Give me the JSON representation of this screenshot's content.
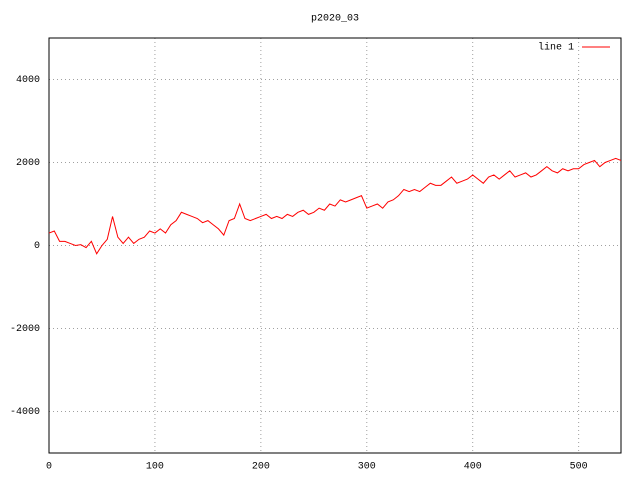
{
  "chart_data": {
    "type": "line",
    "title": "p2020_03",
    "x": [
      0,
      5,
      10,
      15,
      20,
      25,
      30,
      35,
      40,
      45,
      50,
      55,
      60,
      65,
      70,
      75,
      80,
      85,
      90,
      95,
      100,
      105,
      110,
      115,
      120,
      125,
      130,
      135,
      140,
      145,
      150,
      155,
      160,
      165,
      170,
      175,
      180,
      185,
      190,
      195,
      200,
      205,
      210,
      215,
      220,
      225,
      230,
      235,
      240,
      245,
      250,
      255,
      260,
      265,
      270,
      275,
      280,
      285,
      290,
      295,
      300,
      305,
      310,
      315,
      320,
      325,
      330,
      335,
      340,
      345,
      350,
      355,
      360,
      365,
      370,
      375,
      380,
      385,
      390,
      395,
      400,
      405,
      410,
      415,
      420,
      425,
      430,
      435,
      440,
      445,
      450,
      455,
      460,
      465,
      470,
      475,
      480,
      485,
      490,
      495,
      500,
      505,
      510,
      515,
      520,
      525,
      530,
      535,
      540
    ],
    "series": [
      {
        "name": "line 1",
        "color": "#ff0000",
        "values": [
          300,
          350,
          100,
          100,
          50,
          0,
          20,
          -50,
          100,
          -200,
          0,
          150,
          700,
          200,
          50,
          200,
          50,
          150,
          200,
          350,
          300,
          400,
          300,
          500,
          600,
          800,
          750,
          700,
          650,
          550,
          600,
          500,
          400,
          250,
          600,
          650,
          1000,
          650,
          600,
          650,
          700,
          750,
          650,
          700,
          650,
          750,
          700,
          800,
          850,
          750,
          800,
          900,
          850,
          1000,
          950,
          1100,
          1050,
          1100,
          1150,
          1200,
          900,
          950,
          1000,
          900,
          1050,
          1100,
          1200,
          1350,
          1300,
          1350,
          1300,
          1400,
          1500,
          1450,
          1450,
          1550,
          1650,
          1500,
          1550,
          1600,
          1700,
          1600,
          1500,
          1650,
          1700,
          1600,
          1700,
          1800,
          1650,
          1700,
          1750,
          1650,
          1700,
          1800,
          1900,
          1800,
          1750,
          1850,
          1800,
          1850,
          1850,
          1950,
          2000,
          2050,
          1900,
          2000,
          2050,
          2100,
          2050
        ]
      }
    ],
    "xlim": [
      0,
      540
    ],
    "xticks": [
      0,
      100,
      200,
      300,
      400,
      500
    ],
    "ylim": [
      -5000,
      5000
    ],
    "yticks": [
      -4000,
      -2000,
      0,
      2000,
      4000
    ],
    "grid": true,
    "legend": "top-right"
  }
}
